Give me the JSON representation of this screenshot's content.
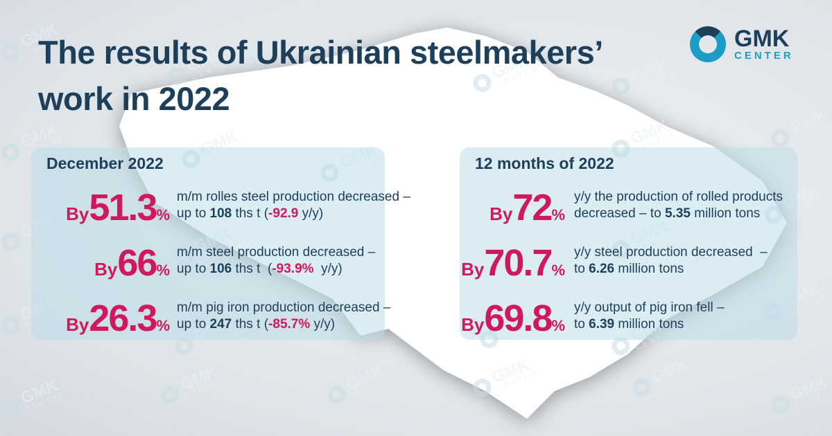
{
  "header": {
    "title_line1": "The results of Ukrainian steelmakers’",
    "title_line2": "work in 2022"
  },
  "logo": {
    "line1": "GMK",
    "line2": "CENTER"
  },
  "panels": [
    {
      "heading": "December 2022",
      "items": [
        {
          "prefix": "By",
          "number": "51.3",
          "unit": "%",
          "lines": [
            [
              {
                "text": "m/m rolles steel production decreased –"
              }
            ],
            [
              {
                "text": "up to "
              },
              {
                "text": "108",
                "bold": true
              },
              {
                "text": " ths t ("
              },
              {
                "text": "-92.9",
                "accent": true
              },
              {
                "text": " y/y)"
              }
            ]
          ]
        },
        {
          "prefix": "By",
          "number": "66",
          "unit": "%",
          "lines": [
            [
              {
                "text": "m/m steel production decreased –"
              }
            ],
            [
              {
                "text": "up to "
              },
              {
                "text": "106",
                "bold": true
              },
              {
                "text": " ths t  ("
              },
              {
                "text": "-93.9%",
                "accent": true
              },
              {
                "text": "  y/y)"
              }
            ]
          ]
        },
        {
          "prefix": "By",
          "number": "26.3",
          "unit": "%",
          "lines": [
            [
              {
                "text": "m/m pig iron production decreased –"
              }
            ],
            [
              {
                "text": "up to "
              },
              {
                "text": "247",
                "bold": true
              },
              {
                "text": " ths t ("
              },
              {
                "text": "-85.7%",
                "accent": true
              },
              {
                "text": " y/y)"
              }
            ]
          ]
        }
      ]
    },
    {
      "heading": "12 months of 2022",
      "items": [
        {
          "prefix": "By",
          "number": "72",
          "unit": "%",
          "lines": [
            [
              {
                "text": "y/y the production of rolled products"
              }
            ],
            [
              {
                "text": "decreased – to "
              },
              {
                "text": "5.35",
                "bold": true
              },
              {
                "text": " million tons"
              }
            ]
          ]
        },
        {
          "prefix": "By",
          "number": "70.7",
          "unit": "%",
          "lines": [
            [
              {
                "text": "y/y steel production decreased  –"
              }
            ],
            [
              {
                "text": "to "
              },
              {
                "text": "6.26",
                "bold": true
              },
              {
                "text": " million tons"
              }
            ]
          ]
        },
        {
          "prefix": "By",
          "number": "69.8",
          "unit": "%",
          "lines": [
            [
              {
                "text": "y/y output of pig iron fell –"
              }
            ],
            [
              {
                "text": "to "
              },
              {
                "text": "6.39",
                "bold": true
              },
              {
                "text": " million tons"
              }
            ]
          ]
        }
      ]
    }
  ]
}
